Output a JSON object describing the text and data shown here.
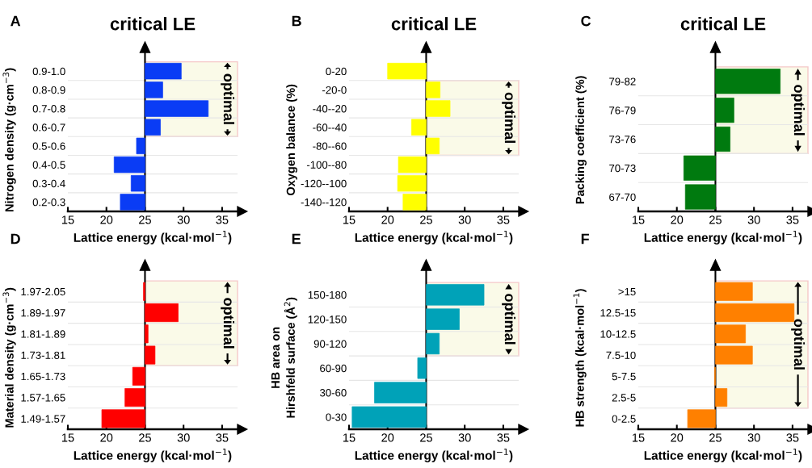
{
  "chart_data": [
    {
      "type": "bar",
      "orientation": "horizontal",
      "title": "critical LE",
      "annotations": [
        "A"
      ],
      "xlabel": "Lattice energy (kcal·mol$^{−1}$)",
      "ylabel": "Nitrogen density (g·cm$^{−3}$)",
      "categories": [
        "0.9-1.0",
        "0.8-0.9",
        "0.7-0.8",
        "0.6-0.7",
        "0.5-0.6",
        "0.4-0.5",
        "0.3-0.4",
        "0.2-0.3"
      ],
      "base": [
        25,
        25,
        25,
        25,
        25,
        25,
        25,
        25
      ],
      "values": [
        4.7,
        2.3,
        8.2,
        2.0,
        -1.1,
        -4.0,
        -1.8,
        -3.2
      ],
      "color": "#0a3cf5",
      "xlim": [
        15,
        37
      ],
      "xticks": [
        15,
        20,
        25,
        30,
        35
      ],
      "grid": "y",
      "bands": [
        {
          "axis": "y",
          "from": "0.6-0.7",
          "to": "0.9-1.0",
          "label": "optimal",
          "color": "#fafae8"
        }
      ],
      "ref_lines": [
        {
          "axis": "x",
          "value": 25,
          "color": "#000000"
        }
      ]
    },
    {
      "type": "bar",
      "orientation": "horizontal",
      "title": "critical LE",
      "annotations": [
        "B"
      ],
      "xlabel": "Lattice energy (kcal·mol$^{−1}$)",
      "ylabel": "Oxygen balance (%)",
      "categories": [
        "0-20",
        "-20-0",
        "-40--20",
        "-60--40",
        "-80--60",
        "-100--80",
        "-120--100",
        "-140--120"
      ],
      "base": [
        25,
        25,
        25,
        25,
        25,
        25,
        25,
        25
      ],
      "values": [
        -5.0,
        1.8,
        3.1,
        -1.9,
        1.7,
        -3.6,
        -3.7,
        -3.0
      ],
      "color": "#ffff00",
      "xlim": [
        15,
        37
      ],
      "xticks": [
        15,
        20,
        25,
        30,
        35
      ],
      "grid": "y",
      "bands": [
        {
          "axis": "y",
          "from": "-80--60",
          "to": "-20-0",
          "label": "optimal",
          "color": "#fafae8"
        }
      ],
      "ref_lines": [
        {
          "axis": "x",
          "value": 25,
          "color": "#000000"
        }
      ]
    },
    {
      "type": "bar",
      "orientation": "horizontal",
      "title": "critical LE",
      "annotations": [
        "C"
      ],
      "xlabel": "Lattice energy (kcal·mol$^{−1}$)",
      "ylabel": "Packing coefficient (%)",
      "categories": [
        "79-82",
        "76-79",
        "73-76",
        "70-73",
        "67-70"
      ],
      "base": [
        25,
        25,
        25,
        25,
        25
      ],
      "values": [
        8.4,
        2.4,
        1.9,
        -4.1,
        -3.9
      ],
      "color": "#007a0f",
      "xlim": [
        15,
        37
      ],
      "xticks": [
        15,
        20,
        25,
        30,
        35
      ],
      "grid": "y",
      "bands": [
        {
          "axis": "y",
          "from": "73-76",
          "to": "79-82",
          "label": "optimal",
          "color": "#fafae8"
        }
      ],
      "ref_lines": [
        {
          "axis": "x",
          "value": 25,
          "color": "#000000"
        }
      ]
    },
    {
      "type": "bar",
      "orientation": "horizontal",
      "annotations": [
        "D"
      ],
      "xlabel": "Lattice energy (kcal·mol$^{−1}$)",
      "ylabel": "Material density (g·cm$^{−3}$)",
      "categories": [
        "1.97-2.05",
        "1.89-1.97",
        "1.81-1.89",
        "1.73-1.81",
        "1.65-1.73",
        "1.57-1.65",
        "1.49-1.57"
      ],
      "base": [
        25,
        25,
        25,
        25,
        25,
        25,
        25
      ],
      "values": [
        -0.2,
        4.3,
        0.4,
        1.3,
        -1.6,
        -2.6,
        -5.6
      ],
      "color": "#ff0000",
      "xlim": [
        15,
        37
      ],
      "xticks": [
        15,
        20,
        25,
        30,
        35
      ],
      "grid": "y",
      "bands": [
        {
          "axis": "y",
          "from": "1.73-1.81",
          "to": "1.97-2.05",
          "label": "optimal",
          "color": "#fafae8"
        }
      ],
      "ref_lines": [
        {
          "axis": "x",
          "value": 25,
          "color": "#000000"
        }
      ]
    },
    {
      "type": "bar",
      "orientation": "horizontal",
      "annotations": [
        "E"
      ],
      "xlabel": "Lattice energy (kcal·mol$^{−1}$)",
      "ylabel": "HB area on\nHirshfeld surface (Å$^{2}$)",
      "categories": [
        "150-180",
        "120-150",
        "90-120",
        "60-90",
        "30-60",
        "0-30"
      ],
      "base": [
        25,
        25,
        25,
        25,
        25,
        25
      ],
      "values": [
        7.5,
        4.3,
        1.7,
        -1.1,
        -6.7,
        -9.6
      ],
      "color": "#00a2b8",
      "xlim": [
        15,
        37
      ],
      "xticks": [
        15,
        20,
        25,
        30,
        35
      ],
      "grid": "y",
      "bands": [
        {
          "axis": "y",
          "from": "90-120",
          "to": "150-180",
          "label": "optimal",
          "color": "#fafae8"
        }
      ],
      "ref_lines": [
        {
          "axis": "x",
          "value": 25,
          "color": "#000000"
        }
      ]
    },
    {
      "type": "bar",
      "orientation": "horizontal",
      "annotations": [
        "F"
      ],
      "xlabel": "Lattice energy (kcal·mol$^{−1}$)",
      "ylabel": "HB strength (kcal·mol$^{−1}$)",
      "categories": [
        ">15",
        "12.5-15",
        "10-12.5",
        "7.5-10",
        "5-7.5",
        "2.5-5",
        "0-2.5"
      ],
      "base": [
        25,
        25,
        25,
        25,
        25,
        25,
        25
      ],
      "values": [
        4.8,
        10.2,
        3.9,
        4.8,
        -0.1,
        1.5,
        -3.6
      ],
      "color": "#ff8000",
      "xlim": [
        15,
        37
      ],
      "xticks": [
        15,
        20,
        25,
        30,
        35
      ],
      "grid": "y",
      "bands": [
        {
          "axis": "y",
          "from": "2.5-5",
          "to": ">15",
          "label": "optimal",
          "color": "#fafae8"
        }
      ],
      "ref_lines": [
        {
          "axis": "x",
          "value": 25,
          "color": "#000000"
        }
      ]
    }
  ]
}
